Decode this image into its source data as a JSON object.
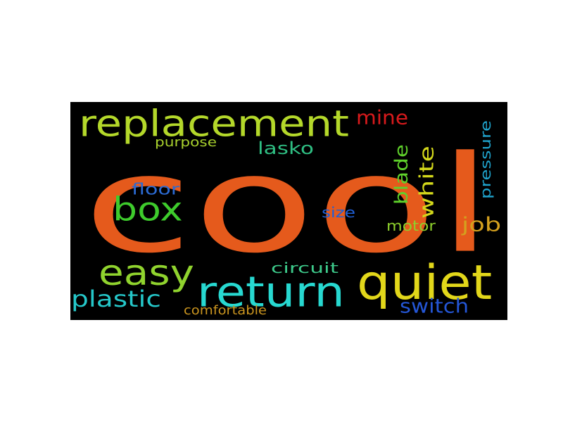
{
  "word_cloud": {
    "background": "#000000",
    "words": [
      {
        "text": "cool",
        "color": "#e55a1c"
      },
      {
        "text": "replacement",
        "color": "#b4d82a"
      },
      {
        "text": "quiet",
        "color": "#e2d71a"
      },
      {
        "text": "return",
        "color": "#27d8d0"
      },
      {
        "text": "box",
        "color": "#3ecb2c"
      },
      {
        "text": "easy",
        "color": "#90d32e"
      },
      {
        "text": "plastic",
        "color": "#25c7c9"
      },
      {
        "text": "mine",
        "color": "#d81a1c"
      },
      {
        "text": "lasko",
        "color": "#2fbf83"
      },
      {
        "text": "job",
        "color": "#d4a01e"
      },
      {
        "text": "switch",
        "color": "#2456d6"
      },
      {
        "text": "white",
        "color": "#d3d81b"
      },
      {
        "text": "blade",
        "color": "#5fd12b"
      },
      {
        "text": "pressure",
        "color": "#1fa3cc"
      },
      {
        "text": "floor",
        "color": "#2b6ad2"
      },
      {
        "text": "motor",
        "color": "#8ed02c"
      },
      {
        "text": "circuit",
        "color": "#3dc98a"
      },
      {
        "text": "purpose",
        "color": "#a7cf2d"
      },
      {
        "text": "size",
        "color": "#2060d8"
      },
      {
        "text": "comfortable",
        "color": "#c9941f"
      }
    ]
  }
}
